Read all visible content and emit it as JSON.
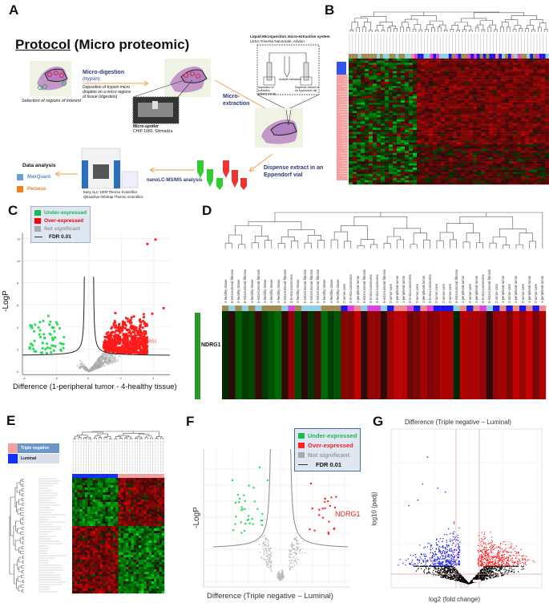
{
  "panels": {
    "a": "A",
    "b": "B",
    "c": "C",
    "d": "D",
    "e": "E",
    "f": "F",
    "g": "G"
  },
  "protocol": {
    "title_underlined": "Protocol",
    "title_rest": " (Micro proteomic)",
    "selection_caption": "Selection of regions of interest",
    "digestion_title": "Micro-digestion",
    "digestion_sub": "(trypsin)",
    "digestion_desc": "Deposition of trypsin micro droplets on a micro regions of tissue (digestion)",
    "spotter_title": "Micro-spotter",
    "spotter_sub": "CHIP 1000, Shimadzu",
    "extraction": "Micro-extraction",
    "lesa_title": "Liquid Microjunction micro-extraction system",
    "lesa_sub": "LESA Triversa Nanomate, Advion",
    "lesa_step1": "Aspiration of extraction solvent into tip",
    "lesa_step2": "Analyte extraction",
    "lesa_step3": "Dispense extract in an Eppendorf vial",
    "dispense": "Dispense extract in an Eppendorf vial",
    "nanolc": "nanoLC-MS/MS analysis",
    "instrument1": "Easy nLC 1000 Thermo Scientifics",
    "instrument2": "QExactive-Orbitrap Thermo Scientifics",
    "data_analysis": "Data analysis",
    "maxquant": "MaxQuant",
    "perseus": "Perseus"
  },
  "legend": {
    "under": "Under-expressed",
    "over": "Over-expressed",
    "ns": "Not significant",
    "fdr": "FDR 0.01"
  },
  "colors": {
    "under": "#22dd55",
    "over": "#ff1a1a",
    "ns": "#aaaaaa",
    "blue": "#2222ee",
    "healthy": "#a08c50",
    "fibrosis": "#8fd0e6",
    "insitu": "#e040e0",
    "core": "#1a1aee",
    "peripheral": "#f08c8c",
    "tn": "#f4a0a0",
    "lum": "#1030ff"
  },
  "chart_data": [
    {
      "id": "C",
      "type": "scatter",
      "subtype": "volcano",
      "xlabel": "Difference (1-peripheral tumor - 4-healthy tissue)",
      "ylabel": "-LogP",
      "xlim": [
        -4,
        5
      ],
      "ylim": [
        0,
        12.5
      ],
      "xticks": [
        -4,
        -2,
        0,
        2,
        4
      ],
      "yticks": [
        0,
        2,
        4,
        6,
        8,
        10,
        12
      ],
      "grid": true,
      "legend_position": "top-left",
      "annotations": [
        {
          "text": "NDRG1",
          "x": 4.1,
          "y": 2.7
        }
      ],
      "highlight_points": [
        [
          4.1,
          11.9
        ],
        [
          3.6,
          11.5
        ],
        [
          4.6,
          5.7
        ],
        [
          3.9,
          5.2
        ],
        [
          -2.5,
          5.0
        ],
        [
          -3.5,
          3.9
        ]
      ],
      "counts": {
        "under": 60,
        "over": 600,
        "ns": 350
      }
    },
    {
      "id": "D",
      "type": "heatmap",
      "row_labels": [
        "NDRG1"
      ],
      "column_labels": [
        "4-healthy-tissue",
        "5-intra-tumoral-fibrosis",
        "4-healthy-tissue",
        "5-intra-tumoral-fibrosis",
        "4-healthy-tissue",
        "5-intra-tumoral-fibrosis",
        "4-healthy-tissue",
        "4-healthy-tissue",
        "4-healthy-tissue",
        "5-intra-tumoral-fibrosis",
        "3-in-situ-carcinoma",
        "4-healthy-tissue",
        "5-intra-tumoral-fibrosis",
        "5-intra-tumoral-fibrosis",
        "5-intra-tumoral-fibrosis",
        "4-healthy-tissue",
        "4-healthy-tissue",
        "4-healthy-tissue",
        "2-tumor-core",
        "3-in-situ-carcinoma",
        "1-peripheral-tumor",
        "5-intra-tumoral-fibrosis",
        "3-in-situ-carcinoma",
        "3-in-situ-carcinoma",
        "5-intra-tumoral-fibrosis",
        "2-tumor-core",
        "1-peripheral-tumor",
        "1-peripheral-tumor",
        "3-in-situ-carcinoma",
        "2-tumor-core",
        "1-peripheral-tumor",
        "3-in-situ-carcinoma",
        "2-tumor-core",
        "2-tumor-core",
        "2-tumor-core",
        "5-intra-tumoral-fibrosis",
        "1-peripheral-tumor",
        "2-tumor-core",
        "1-peripheral-tumor",
        "3-in-situ-carcinoma",
        "5-intra-tumoral-fibrosis",
        "2-tumor-core",
        "1-peripheral-tumor",
        "2-tumor-core",
        "1-peripheral-tumor",
        "2-tumor-core",
        "1-peripheral-tumor",
        "2-tumor-core",
        "1-peripheral-tumor"
      ]
    },
    {
      "id": "E",
      "type": "heatmap",
      "legend": [
        {
          "label": "Triple negative"
        },
        {
          "label": "Luminal"
        }
      ]
    },
    {
      "id": "F",
      "type": "scatter",
      "subtype": "volcano",
      "xlabel": "Difference (Triple negative – Luminal)",
      "ylabel": "-LogP",
      "xlim": [
        -4.5,
        4.5
      ],
      "ylim": [
        0,
        7.5
      ],
      "grid": true,
      "legend_position": "top-right",
      "annotations": [
        {
          "text": "NDRG1",
          "x": 3.3,
          "y": 4.5
        }
      ],
      "highlight_points": [
        [
          -1.3,
          7.1
        ],
        [
          -3.0,
          6.3
        ],
        [
          -0.8,
          6.3
        ],
        [
          1.9,
          6.1
        ],
        [
          3.4,
          4.6
        ],
        [
          -2.8,
          4.9
        ]
      ],
      "counts": {
        "under": 30,
        "over": 20,
        "ns": 500
      }
    },
    {
      "id": "G",
      "type": "scatter",
      "subtype": "volcano",
      "title": "Difference (Triple negative – Luminal)",
      "xlabel": "log2 (fold change)",
      "ylabel": "log10 (padj)",
      "thresholds": {
        "x": [
          -1,
          1
        ],
        "y": 1.3
      },
      "grid": true,
      "counts": {
        "down": 700,
        "up": 900,
        "ns": 3000
      }
    }
  ]
}
